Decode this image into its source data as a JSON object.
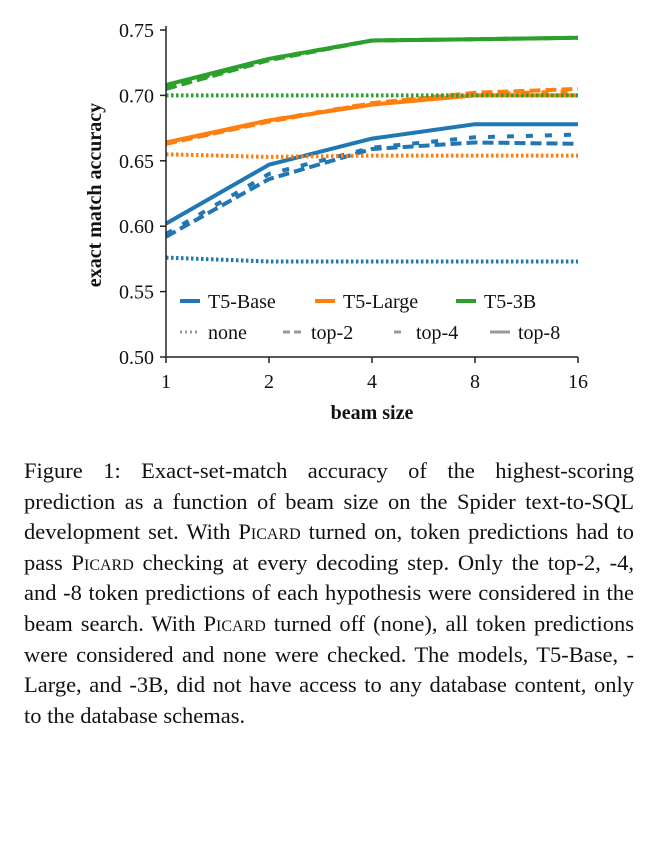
{
  "chart_data": {
    "type": "line",
    "title": "",
    "xlabel": "beam size",
    "ylabel": "exact match accuracy",
    "x": [
      1,
      2,
      4,
      8,
      16
    ],
    "x_tick_labels": [
      "1",
      "2",
      "4",
      "8",
      "16"
    ],
    "x_scale": "log2",
    "ylim": [
      0.5,
      0.75
    ],
    "y_ticks": [
      0.5,
      0.55,
      0.6,
      0.65,
      0.7,
      0.75
    ],
    "y_tick_labels": [
      "0.50",
      "0.55",
      "0.60",
      "0.65",
      "0.70",
      "0.75"
    ],
    "grid": false,
    "legend_position": "bottom-inside",
    "models": [
      {
        "name": "T5-Base",
        "color": "#1f77b4"
      },
      {
        "name": "T5-Large",
        "color": "#ff7f0e"
      },
      {
        "name": "T5-3B",
        "color": "#2ca02c"
      }
    ],
    "modes": [
      {
        "name": "none",
        "dash": "dotted"
      },
      {
        "name": "top-2",
        "dash": "dashed"
      },
      {
        "name": "top-4",
        "dash": "dashed-sparse"
      },
      {
        "name": "top-8",
        "dash": "solid"
      }
    ],
    "legend_line_color": "#999999",
    "series": [
      {
        "model": "T5-Base",
        "mode": "none",
        "values": [
          0.576,
          0.573,
          0.573,
          0.573,
          0.573
        ]
      },
      {
        "model": "T5-Base",
        "mode": "top-2",
        "values": [
          0.592,
          0.636,
          0.659,
          0.664,
          0.663
        ]
      },
      {
        "model": "T5-Base",
        "mode": "top-4",
        "values": [
          0.594,
          0.64,
          0.66,
          0.668,
          0.67
        ]
      },
      {
        "model": "T5-Base",
        "mode": "top-8",
        "values": [
          0.602,
          0.647,
          0.667,
          0.678,
          0.678
        ]
      },
      {
        "model": "T5-Large",
        "mode": "none",
        "values": [
          0.655,
          0.653,
          0.654,
          0.654,
          0.654
        ]
      },
      {
        "model": "T5-Large",
        "mode": "top-2",
        "values": [
          0.663,
          0.68,
          0.694,
          0.702,
          0.705
        ]
      },
      {
        "model": "T5-Large",
        "mode": "top-4",
        "values": [
          0.663,
          0.681,
          0.694,
          0.701,
          0.703
        ]
      },
      {
        "model": "T5-Large",
        "mode": "top-8",
        "values": [
          0.664,
          0.681,
          0.693,
          0.7,
          0.7
        ]
      },
      {
        "model": "T5-3B",
        "mode": "none",
        "values": [
          0.7,
          0.7,
          0.7,
          0.7,
          0.7
        ]
      },
      {
        "model": "T5-3B",
        "mode": "top-2",
        "values": [
          0.705,
          0.727,
          0.742,
          0.743,
          0.744
        ]
      },
      {
        "model": "T5-3B",
        "mode": "top-4",
        "values": [
          0.706,
          0.728,
          0.742,
          0.743,
          0.744
        ]
      },
      {
        "model": "T5-3B",
        "mode": "top-8",
        "values": [
          0.708,
          0.728,
          0.742,
          0.743,
          0.744
        ]
      }
    ]
  },
  "caption": {
    "label": "Figure 1:",
    "part1": "Exact-set-match accuracy of the highest-scoring prediction as a function of beam size on the Spider text-to-SQL development set. With ",
    "picard_1": "Picard",
    "part2": " turned on, token predictions had to pass ",
    "picard_2": "Picard",
    "part3": " checking at every decoding step. Only the top-2, -4, and -8 token predictions of each hypothesis were considered in the beam search. With ",
    "picard_3": "Picard",
    "part4": " turned off (none), all token predictions were considered and none were checked. The models, T5-Base, -Large, and -3B, did not have access to any database content, only to the database schemas."
  }
}
